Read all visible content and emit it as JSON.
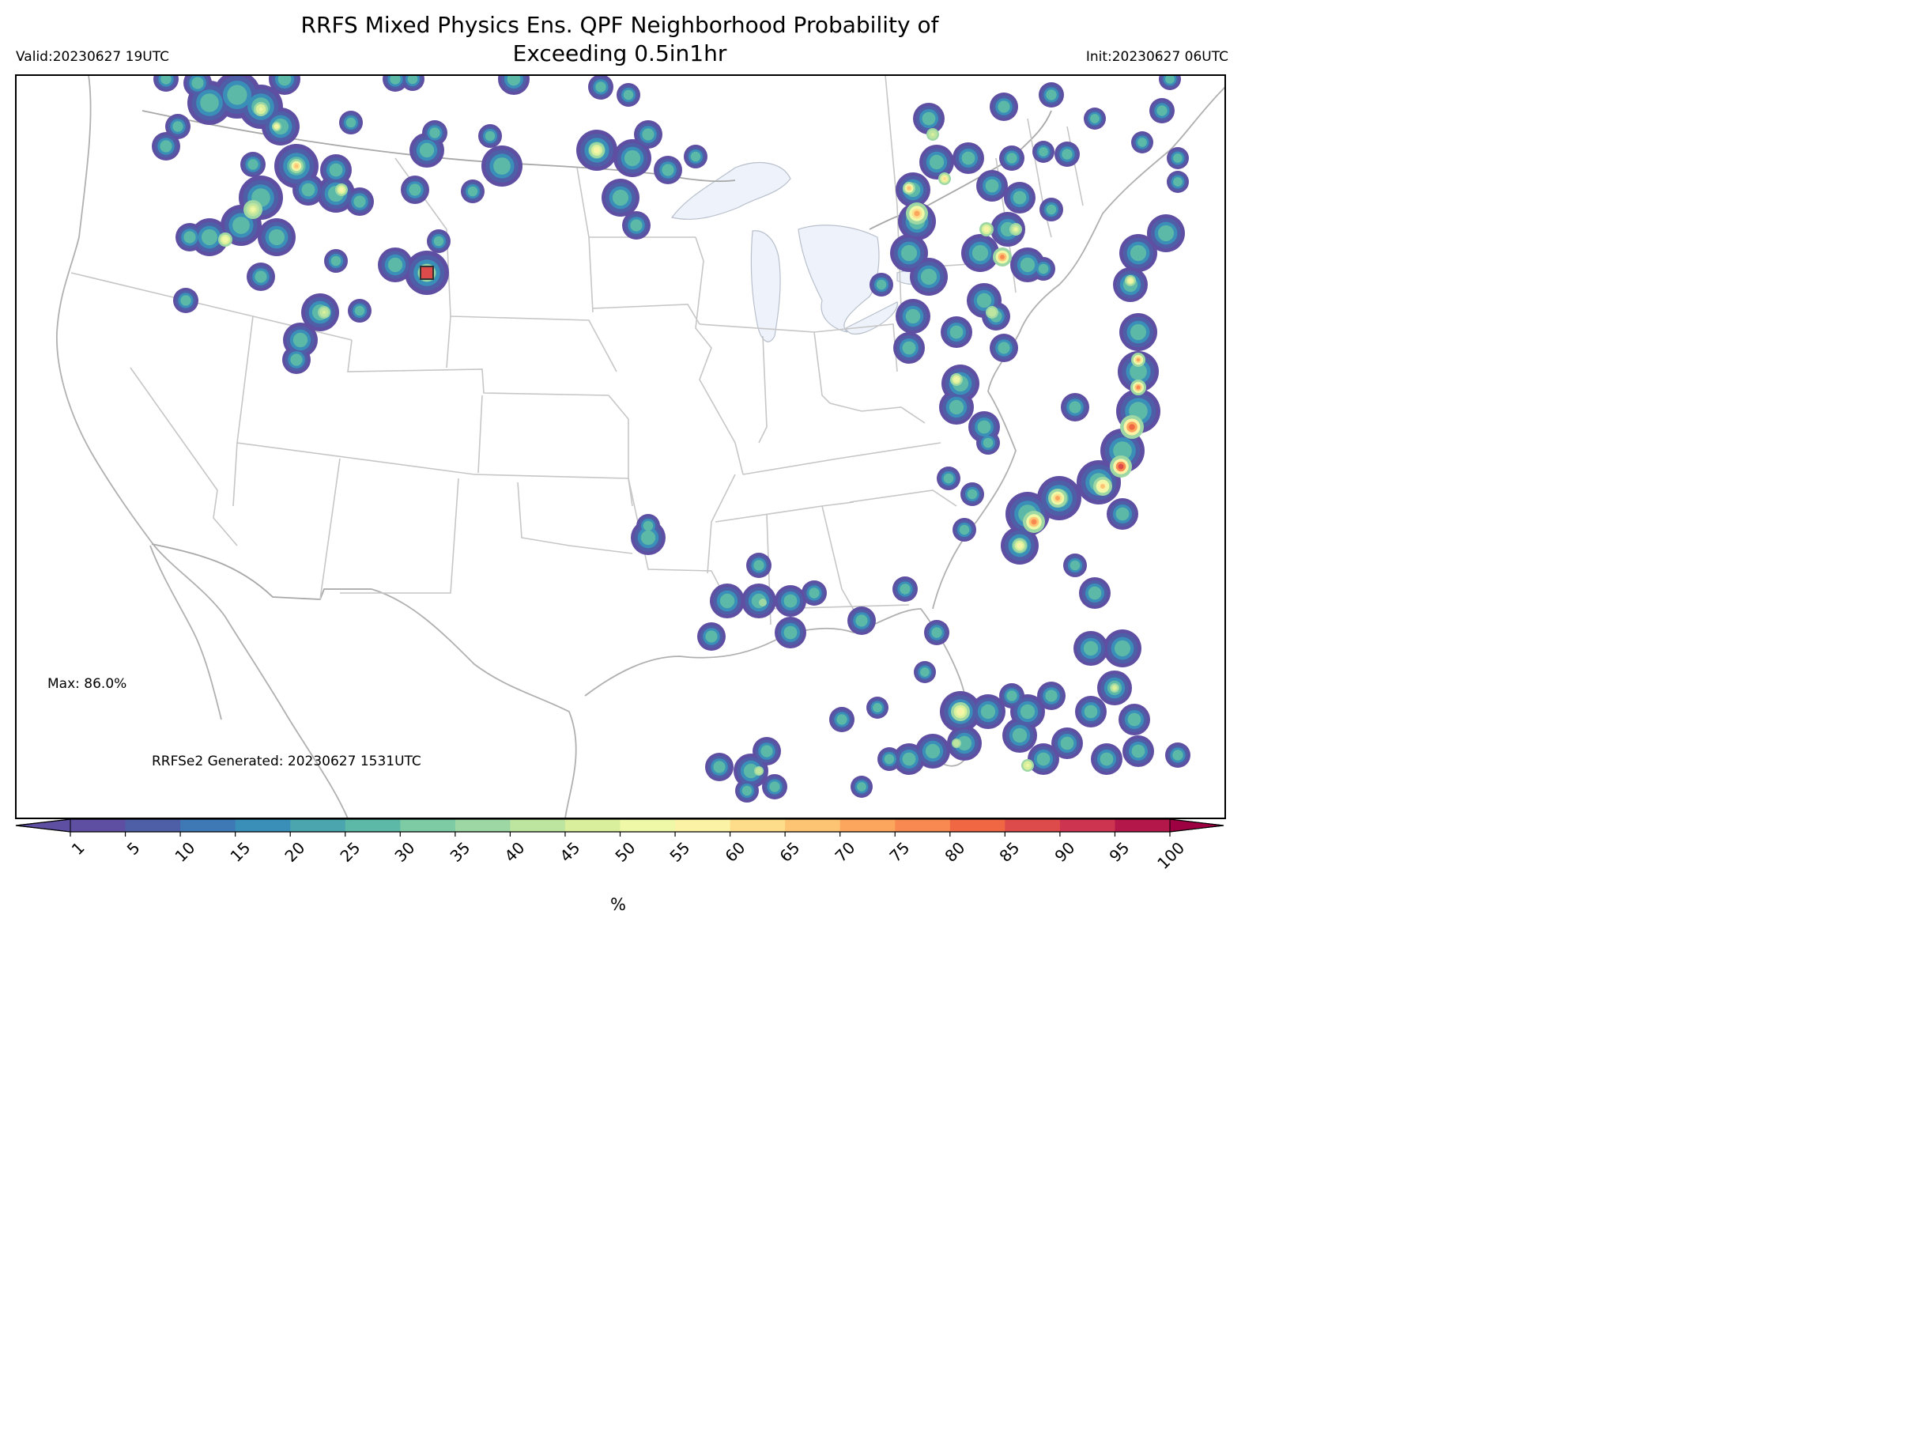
{
  "header": {
    "title_line1": "RRFS Mixed Physics Ens. QPF Neighborhood Probability of",
    "title_line2": "Exceeding 0.5in1hr",
    "valid": "Valid:20230627 19UTC",
    "init": "Init:20230627 06UTC"
  },
  "annotations": {
    "max": "Max: 86.0%",
    "generated": "RRFSe2 Generated: 20230627 1531UTC"
  },
  "colorbar": {
    "unit": "%",
    "ticks": [
      "1",
      "5",
      "10",
      "15",
      "20",
      "25",
      "30",
      "35",
      "40",
      "45",
      "50",
      "55",
      "60",
      "65",
      "70",
      "75",
      "80",
      "85",
      "90",
      "95",
      "100"
    ],
    "colors": [
      "#5e4fa2",
      "#4e5fa8",
      "#3e78b5",
      "#3a8fb8",
      "#4aa5ae",
      "#5cb8a7",
      "#7ccba4",
      "#9dd7a4",
      "#bde5a0",
      "#d9ef9b",
      "#eef8a6",
      "#fbf2a6",
      "#fedd8a",
      "#fdc473",
      "#fca55d",
      "#f88a51",
      "#f06744",
      "#de4b4b",
      "#cc3450",
      "#b4184a"
    ],
    "extend_low": "#5e4fa2",
    "extend_high": "#9e0142"
  },
  "precip_cells": [
    [
      265,
      130,
      28
    ],
    [
      300,
      120,
      30
    ],
    [
      330,
      135,
      28
    ],
    [
      355,
      160,
      24
    ],
    [
      375,
      210,
      28
    ],
    [
      330,
      250,
      28
    ],
    [
      305,
      285,
      26
    ],
    [
      265,
      300,
      24
    ],
    [
      240,
      300,
      18
    ],
    [
      350,
      300,
      24
    ],
    [
      210,
      185,
      18
    ],
    [
      225,
      160,
      16
    ],
    [
      210,
      100,
      16
    ],
    [
      250,
      105,
      18
    ],
    [
      360,
      100,
      20
    ],
    [
      425,
      245,
      24
    ],
    [
      455,
      255,
      18
    ],
    [
      425,
      215,
      20
    ],
    [
      390,
      240,
      20
    ],
    [
      320,
      208,
      16
    ],
    [
      330,
      350,
      18
    ],
    [
      235,
      380,
      16
    ],
    [
      425,
      330,
      15
    ],
    [
      444,
      155,
      15
    ],
    [
      405,
      395,
      24
    ],
    [
      380,
      430,
      22
    ],
    [
      375,
      455,
      18
    ],
    [
      455,
      393,
      15
    ],
    [
      540,
      345,
      28
    ],
    [
      500,
      335,
      22
    ],
    [
      555,
      305,
      15
    ],
    [
      540,
      190,
      22
    ],
    [
      525,
      240,
      18
    ],
    [
      550,
      168,
      16
    ],
    [
      598,
      242,
      15
    ],
    [
      620,
      172,
      15
    ],
    [
      635,
      210,
      26
    ],
    [
      650,
      100,
      20
    ],
    [
      500,
      100,
      16
    ],
    [
      522,
      100,
      15
    ],
    [
      760,
      110,
      16
    ],
    [
      795,
      120,
      15
    ],
    [
      755,
      190,
      26
    ],
    [
      800,
      200,
      24
    ],
    [
      820,
      170,
      18
    ],
    [
      845,
      215,
      18
    ],
    [
      785,
      250,
      24
    ],
    [
      805,
      285,
      18
    ],
    [
      880,
      198,
      15
    ],
    [
      820,
      680,
      22
    ],
    [
      820,
      665,
      15
    ],
    [
      1155,
      240,
      22
    ],
    [
      1185,
      205,
      22
    ],
    [
      1175,
      150,
      20
    ],
    [
      1160,
      280,
      24
    ],
    [
      1150,
      320,
      24
    ],
    [
      1175,
      350,
      24
    ],
    [
      1155,
      400,
      22
    ],
    [
      1150,
      440,
      20
    ],
    [
      1225,
      200,
      20
    ],
    [
      1255,
      235,
      20
    ],
    [
      1280,
      200,
      16
    ],
    [
      1290,
      250,
      20
    ],
    [
      1275,
      290,
      22
    ],
    [
      1300,
      335,
      22
    ],
    [
      1240,
      320,
      24
    ],
    [
      1245,
      380,
      22
    ],
    [
      1210,
      420,
      20
    ],
    [
      1260,
      400,
      18
    ],
    [
      1270,
      440,
      18
    ],
    [
      1115,
      360,
      15
    ],
    [
      1320,
      340,
      15
    ],
    [
      1330,
      265,
      15
    ],
    [
      1270,
      135,
      18
    ],
    [
      1330,
      120,
      16
    ],
    [
      1215,
      485,
      24
    ],
    [
      1210,
      515,
      22
    ],
    [
      1245,
      540,
      20
    ],
    [
      1250,
      560,
      15
    ],
    [
      1200,
      605,
      15
    ],
    [
      1230,
      625,
      15
    ],
    [
      1220,
      670,
      15
    ],
    [
      1360,
      515,
      18
    ],
    [
      1440,
      320,
      24
    ],
    [
      1475,
      295,
      24
    ],
    [
      1430,
      360,
      22
    ],
    [
      1440,
      420,
      24
    ],
    [
      1440,
      470,
      26
    ],
    [
      1440,
      520,
      28
    ],
    [
      1420,
      570,
      28
    ],
    [
      1390,
      610,
      28
    ],
    [
      1340,
      630,
      28
    ],
    [
      1300,
      650,
      28
    ],
    [
      1290,
      690,
      24
    ],
    [
      1420,
      650,
      20
    ],
    [
      1360,
      715,
      15
    ],
    [
      1385,
      750,
      20
    ],
    [
      1380,
      820,
      22
    ],
    [
      1420,
      820,
      24
    ],
    [
      1410,
      870,
      22
    ],
    [
      1435,
      910,
      20
    ],
    [
      1380,
      900,
      20
    ],
    [
      1440,
      950,
      20
    ],
    [
      1400,
      960,
      20
    ],
    [
      1350,
      940,
      20
    ],
    [
      1320,
      960,
      20
    ],
    [
      1290,
      930,
      22
    ],
    [
      1300,
      900,
      22
    ],
    [
      1250,
      900,
      22
    ],
    [
      1215,
      900,
      26
    ],
    [
      1220,
      940,
      22
    ],
    [
      1180,
      950,
      22
    ],
    [
      1150,
      960,
      20
    ],
    [
      1125,
      960,
      15
    ],
    [
      1490,
      955,
      16
    ],
    [
      1330,
      880,
      18
    ],
    [
      1280,
      880,
      16
    ],
    [
      920,
      760,
      22
    ],
    [
      960,
      760,
      22
    ],
    [
      1000,
      760,
      20
    ],
    [
      1030,
      750,
      16
    ],
    [
      960,
      715,
      16
    ],
    [
      900,
      805,
      18
    ],
    [
      1000,
      800,
      20
    ],
    [
      1090,
      785,
      18
    ],
    [
      1145,
      745,
      16
    ],
    [
      1185,
      800,
      16
    ],
    [
      1170,
      850,
      14
    ],
    [
      1065,
      910,
      16
    ],
    [
      1110,
      895,
      14
    ],
    [
      1090,
      995,
      14
    ],
    [
      910,
      970,
      18
    ],
    [
      950,
      975,
      22
    ],
    [
      970,
      950,
      18
    ],
    [
      980,
      995,
      16
    ],
    [
      945,
      1000,
      15
    ],
    [
      1385,
      150,
      14
    ],
    [
      1445,
      180,
      14
    ],
    [
      1470,
      140,
      16
    ],
    [
      1490,
      200,
      14
    ],
    [
      1350,
      195,
      16
    ],
    [
      1320,
      192,
      14
    ],
    [
      1490,
      230,
      14
    ],
    [
      1480,
      100,
      14
    ]
  ],
  "precip_cores": [
    [
      540,
      345,
      11,
      0.82
    ],
    [
      375,
      210,
      9,
      0.62
    ],
    [
      432,
      240,
      8,
      0.52
    ],
    [
      755,
      190,
      10,
      0.5
    ],
    [
      330,
      138,
      9,
      0.45
    ],
    [
      320,
      265,
      12,
      0.44
    ],
    [
      285,
      303,
      9,
      0.46
    ],
    [
      350,
      160,
      6,
      0.5
    ],
    [
      410,
      395,
      8,
      0.38
    ],
    [
      1160,
      270,
      14,
      0.68
    ],
    [
      1150,
      238,
      8,
      0.62
    ],
    [
      1195,
      226,
      8,
      0.58
    ],
    [
      1268,
      325,
      12,
      0.72
    ],
    [
      1248,
      290,
      9,
      0.5
    ],
    [
      1285,
      290,
      8,
      0.42
    ],
    [
      1210,
      480,
      8,
      0.46
    ],
    [
      1180,
      170,
      8,
      0.38
    ],
    [
      1255,
      395,
      8,
      0.32
    ],
    [
      1430,
      355,
      7,
      0.5
    ],
    [
      1440,
      455,
      9,
      0.65
    ],
    [
      1440,
      490,
      10,
      0.7
    ],
    [
      1432,
      540,
      15,
      0.8
    ],
    [
      1418,
      590,
      14,
      0.84
    ],
    [
      1395,
      615,
      12,
      0.6
    ],
    [
      1338,
      630,
      12,
      0.68
    ],
    [
      1308,
      660,
      14,
      0.7
    ],
    [
      1290,
      690,
      9,
      0.5
    ],
    [
      1215,
      900,
      12,
      0.5
    ],
    [
      1300,
      968,
      8,
      0.45
    ],
    [
      1410,
      870,
      6,
      0.4
    ],
    [
      1210,
      940,
      6,
      0.36
    ],
    [
      960,
      975,
      6,
      0.34
    ],
    [
      965,
      762,
      5,
      0.3
    ]
  ]
}
